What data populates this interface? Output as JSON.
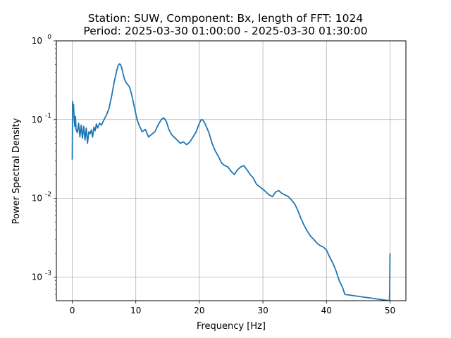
{
  "chart_data": {
    "type": "line",
    "title_lines": [
      "Station: SUW, Component: Bx, length of FFT: 1024",
      "Period: 2025-03-30 01:00:00 - 2025-03-30 01:30:00"
    ],
    "xlabel": "Frequency [Hz]",
    "ylabel": "Power Spectral Density",
    "xlim": [
      -2.5,
      52.5
    ],
    "ylim": [
      0.0005,
      1
    ],
    "yscale": "log",
    "grid": true,
    "x_ticks": [
      0,
      10,
      20,
      30,
      40,
      50
    ],
    "x_tick_labels": [
      "0",
      "10",
      "20",
      "30",
      "40",
      "50"
    ],
    "y_ticks": [
      0.001,
      0.01,
      0.1,
      1
    ],
    "y_tick_labels": [
      "10^-3",
      "10^-2",
      "10^-1",
      "10^0"
    ],
    "line_color": "#1f77b4",
    "series": [
      {
        "x": [
          0.0,
          0.05,
          0.1,
          0.2,
          0.3,
          0.4,
          0.5,
          0.6,
          0.8,
          1.0,
          1.2,
          1.4,
          1.6,
          1.8,
          2.0,
          2.2,
          2.4,
          2.6,
          2.8,
          3.0,
          3.2,
          3.4,
          3.6,
          3.8,
          4.0,
          4.3,
          4.6,
          5.0,
          5.4,
          5.8,
          6.2,
          6.6,
          7.0,
          7.2,
          7.4,
          7.6,
          7.8,
          8.0,
          8.2,
          8.4,
          8.7,
          9.0,
          9.4,
          9.8,
          10.2,
          10.6,
          11.0,
          11.5,
          12.0,
          12.5,
          13.0,
          13.5,
          14.0,
          14.4,
          14.8,
          15.2,
          15.6,
          16.0,
          16.5,
          17.0,
          17.5,
          18.0,
          18.5,
          19.0,
          19.5,
          20.0,
          20.3,
          20.6,
          21.0,
          21.5,
          22.0,
          22.5,
          23.0,
          23.5,
          24.0,
          24.5,
          25.0,
          25.5,
          26.0,
          26.5,
          27.0,
          27.5,
          28.0,
          28.5,
          29.0,
          29.5,
          30.0,
          30.5,
          31.0,
          31.5,
          32.0,
          32.5,
          33.0,
          33.5,
          34.0,
          34.5,
          35.0,
          35.5,
          36.0,
          36.5,
          37.0,
          37.5,
          38.0,
          38.5,
          39.0,
          39.5,
          40.0,
          40.5,
          41.0,
          41.5,
          42.0,
          42.5,
          42.9,
          49.9,
          49.95,
          50.0
        ],
        "values": [
          0.031,
          0.17,
          0.13,
          0.155,
          0.1,
          0.082,
          0.11,
          0.075,
          0.068,
          0.09,
          0.06,
          0.085,
          0.058,
          0.082,
          0.055,
          0.078,
          0.05,
          0.07,
          0.066,
          0.074,
          0.06,
          0.08,
          0.072,
          0.088,
          0.078,
          0.09,
          0.085,
          0.1,
          0.115,
          0.14,
          0.2,
          0.3,
          0.42,
          0.48,
          0.51,
          0.5,
          0.45,
          0.38,
          0.33,
          0.3,
          0.28,
          0.26,
          0.2,
          0.14,
          0.1,
          0.082,
          0.07,
          0.075,
          0.06,
          0.065,
          0.07,
          0.085,
          0.1,
          0.105,
          0.095,
          0.075,
          0.065,
          0.06,
          0.055,
          0.05,
          0.052,
          0.048,
          0.052,
          0.06,
          0.07,
          0.09,
          0.1,
          0.098,
          0.085,
          0.068,
          0.05,
          0.04,
          0.034,
          0.028,
          0.026,
          0.025,
          0.022,
          0.02,
          0.023,
          0.025,
          0.026,
          0.023,
          0.02,
          0.018,
          0.015,
          0.014,
          0.013,
          0.012,
          0.011,
          0.0105,
          0.012,
          0.0125,
          0.0115,
          0.011,
          0.0105,
          0.0095,
          0.0085,
          0.007,
          0.0055,
          0.0045,
          0.0038,
          0.0033,
          0.003,
          0.0027,
          0.0025,
          0.0024,
          0.0022,
          0.0018,
          0.0015,
          0.0012,
          0.0009,
          0.00075,
          0.0006,
          0.0005,
          0.00065,
          0.002
        ]
      }
    ]
  }
}
